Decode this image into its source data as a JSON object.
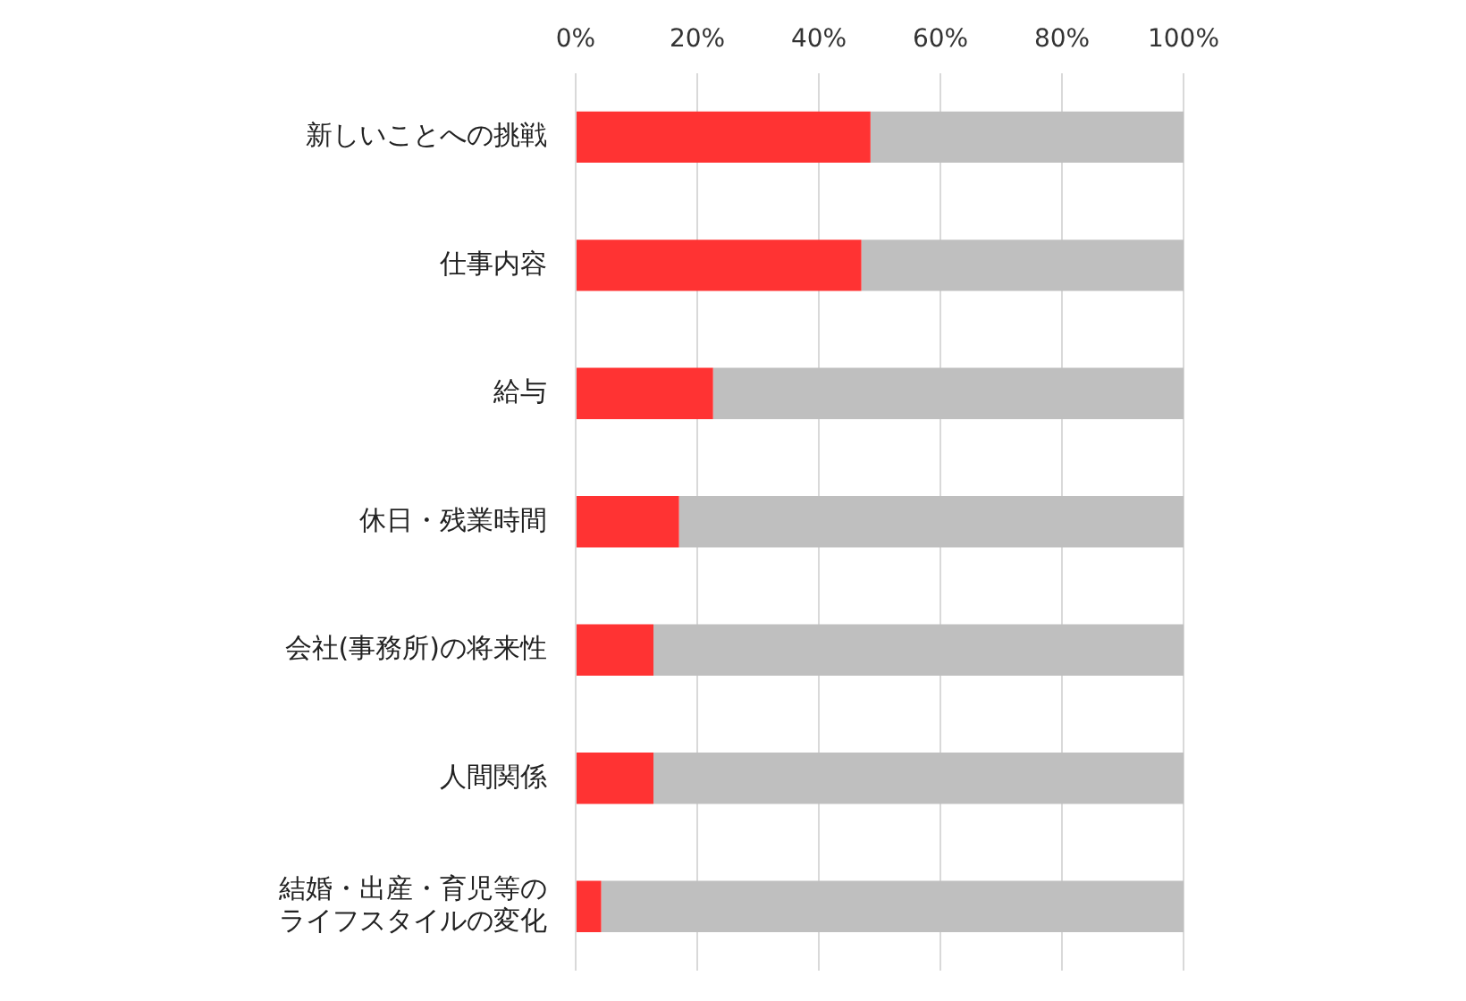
{
  "chart_data": {
    "type": "bar",
    "orientation": "horizontal",
    "stacked": true,
    "categories": [
      "新しいことへの挑戦",
      "仕事内容",
      "給与",
      "休日・残業時間",
      "会社(事務所)の将来性",
      "人間関係",
      "結婚・出産・育児等のライフスタイルの変化"
    ],
    "series": [
      {
        "color": "#ff3333",
        "values": [
          48.5,
          47,
          22.6,
          17,
          12.8,
          12.8,
          4.2
        ]
      },
      {
        "color": "#bfbfbf",
        "values": [
          51.5,
          53,
          77.4,
          83,
          87.2,
          87.2,
          95.8
        ]
      }
    ],
    "xlim": [
      0,
      100
    ],
    "xticks": [
      {
        "value": 0,
        "label": "0%"
      },
      {
        "value": 20,
        "label": "20%"
      },
      {
        "value": 40,
        "label": "40%"
      },
      {
        "value": 60,
        "label": "60%"
      },
      {
        "value": 80,
        "label": "80%"
      },
      {
        "value": 100,
        "label": "100%"
      }
    ],
    "grid": "x",
    "legend": false
  }
}
